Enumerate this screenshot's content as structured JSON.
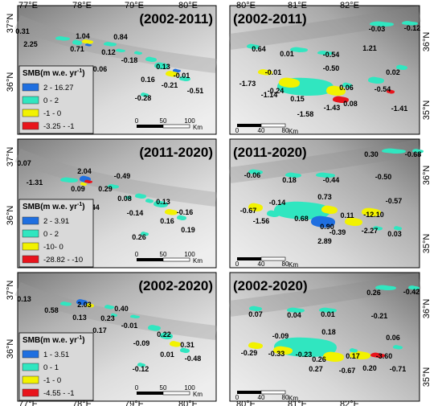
{
  "colors": {
    "class_high": "#1f6fe0",
    "class_mid": "#30e6c0",
    "class_low": "#f2f200",
    "class_neg": "#e8141c",
    "legend_bg": "#d9d9d9"
  },
  "coords": {
    "left_lon": [
      "77°E",
      "78°E",
      "79°E",
      "80°E"
    ],
    "left_lat": [
      "37°N",
      "36°N"
    ],
    "right_lon": [
      "80°E",
      "81°E",
      "82°E"
    ],
    "right_lat": [
      "36°N",
      "35°N"
    ]
  },
  "scalebars": {
    "left": {
      "ticks": [
        "0",
        "50",
        "100"
      ],
      "unit": "Km"
    },
    "right": {
      "ticks": [
        "0",
        "40",
        "80"
      ],
      "unit": "Km"
    }
  },
  "rows": [
    {
      "period": "(2002-2011)",
      "legend": {
        "title": "SMB(m w.e. yr",
        "title_sup": "-1",
        "title_end": ")",
        "items": [
          "2 - 16.27",
          "0 - 2",
          "-1 - 0",
          "-3.25 - -1"
        ]
      },
      "left_values": [
        "0.31",
        "2.25",
        "1.04",
        "0.84",
        "0.71",
        "0.12",
        "-0.18",
        "-0.06",
        "0.13",
        "0.16",
        "-0.01",
        "-0.21",
        "-0.51",
        "-0.28"
      ],
      "right_values": [
        "-0.03",
        "-0.12",
        "0.64",
        "0.01",
        "-0.54",
        "1.21",
        "-0.01",
        "-0.50",
        "0.02",
        "-1.73",
        "-0.24",
        "0.06",
        "-0.54",
        "-1.14",
        "0.15",
        "0.08",
        "-1.43",
        "-1.41",
        "-1.58"
      ]
    },
    {
      "period": "(2011-2020)",
      "legend": {
        "title": "SMB(m w.e. yr",
        "title_sup": "-1",
        "title_end": ")",
        "items": [
          "2 - 3.91",
          "0 - 2",
          "-10- 0",
          "-28.82 - -10"
        ]
      },
      "left_values": [
        "0.07",
        "2.04",
        "-0.49",
        "-1.31",
        "0.09",
        "0.29",
        "0.08",
        "0.44",
        "0.13",
        "-0.14",
        "-0.16",
        "0.16",
        "0.19",
        "0.26"
      ],
      "right_values": [
        "0.30",
        "-0.68",
        "-0.06",
        "0.18",
        "-0.44",
        "-0.50",
        "0.73",
        "-0.57",
        "-0.67",
        "-0.14",
        "-1.56",
        "0.68",
        "0.11",
        "-12.10",
        "0.90",
        "-0.39",
        "-2.27",
        "0.03",
        "2.89"
      ]
    },
    {
      "period": "(2002-2020)",
      "legend": {
        "title": "SMB(m w.e. yr",
        "title_sup": "-1",
        "title_end": ")",
        "items": [
          "1 - 3.51",
          "0 - 1",
          "-1 - 0",
          "-4.55 - -1"
        ]
      },
      "left_values": [
        "0.13",
        "0.58",
        "2.03",
        "0.40",
        "0.13",
        "0.23",
        "0.17",
        "-0.01",
        "0.22",
        "-0.09",
        "0.31",
        "0.01",
        "-0.48",
        "-0.12"
      ],
      "right_values": [
        "0.26",
        "-0.42",
        "0.07",
        "0.04",
        "0.01",
        "-0.21",
        "0.18",
        "-0.09",
        "0.06",
        "-0.29",
        "-0.33",
        "-0.23",
        "0.26",
        "0.17",
        "-3.60",
        "0.27",
        "-0.67",
        "0.20",
        "-0.71"
      ]
    }
  ]
}
